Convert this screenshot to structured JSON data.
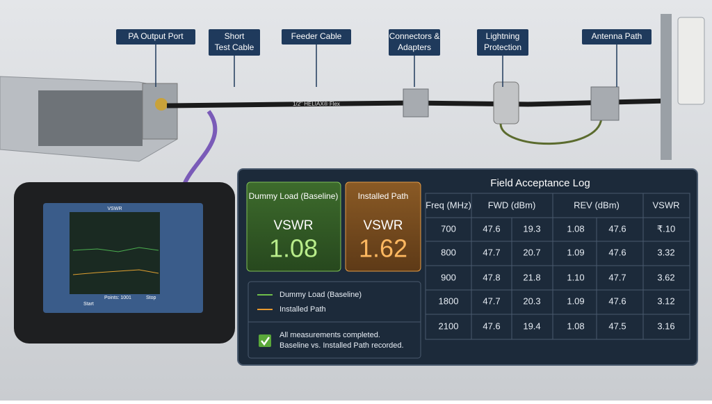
{
  "callouts": [
    "PA Output Port",
    "Short Test Cable",
    "Feeder Cable",
    "Connectors & Adapters",
    "Lightning Protection",
    "Antenna Path"
  ],
  "cable_text": "1/2\" HELIAX® Flex",
  "analyzer": {
    "screen_title": "VSWR",
    "start": "Start",
    "points": "Points: 1001",
    "stop": "Stop"
  },
  "panel": {
    "baseline_card": {
      "title": "Dummy Load (Baseline)",
      "label": "VSWR",
      "value": "1.08"
    },
    "installed_card": {
      "title": "Installed Path",
      "label": "VSWR",
      "value": "1.62"
    },
    "legend": [
      "Dummy Load (Baseline)",
      "Installed Path"
    ],
    "status": [
      "All measurements completed.",
      "Baseline vs. Installed Path recorded."
    ],
    "table": {
      "title": "Field Acceptance Log",
      "headers": [
        "Freq (MHz)",
        "FWD (dBm)",
        "REV (dBm)",
        "VSWR"
      ],
      "rows": [
        [
          "700",
          "47.6",
          "19.3",
          "1.08",
          "47.6",
          "₹.10"
        ],
        [
          "800",
          "47.7",
          "20.7",
          "1.09",
          "47.6",
          "3.32"
        ],
        [
          "900",
          "47.8",
          "21.8",
          "1.10",
          "47.7",
          "3.62"
        ],
        [
          "1800",
          "47.7",
          "20.3",
          "1.09",
          "47.6",
          "3.12"
        ],
        [
          "2100",
          "47.6",
          "19.4",
          "1.08",
          "47.5",
          "3.16"
        ]
      ]
    }
  }
}
